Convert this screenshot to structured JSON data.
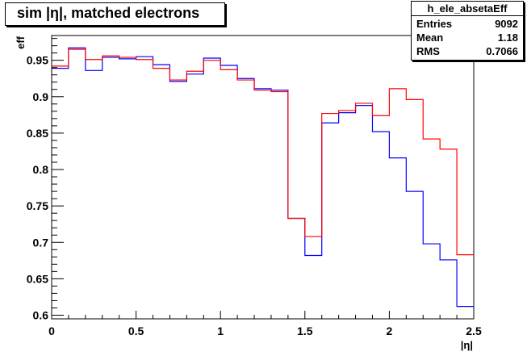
{
  "chart_data": {
    "type": "step",
    "title": "sim |η|, matched electrons",
    "xlabel": "|η|",
    "ylabel": "eff",
    "xlim": [
      0,
      2.5
    ],
    "ylim": [
      0.595,
      0.984
    ],
    "x_ticks": [
      0,
      0.5,
      1,
      1.5,
      2,
      2.5
    ],
    "x_tick_labels": [
      "0",
      "0.5",
      "1",
      "1.5",
      "2",
      "2.5"
    ],
    "y_ticks": [
      0.6,
      0.65,
      0.7,
      0.75,
      0.8,
      0.85,
      0.9,
      0.95
    ],
    "y_tick_labels": [
      "0.6",
      "0.65",
      "0.7",
      "0.75",
      "0.8",
      "0.85",
      "0.9",
      "0.95"
    ],
    "bin_edges": [
      0,
      0.1,
      0.2,
      0.3,
      0.4,
      0.5,
      0.6,
      0.7,
      0.8,
      0.9,
      1.0,
      1.1,
      1.2,
      1.3,
      1.4,
      1.5,
      1.6,
      1.7,
      1.8,
      1.9,
      2.0,
      2.1,
      2.2,
      2.3,
      2.4,
      2.5
    ],
    "series": [
      {
        "color": "#0000ff",
        "values": [
          0.939,
          0.967,
          0.936,
          0.954,
          0.952,
          0.955,
          0.944,
          0.921,
          0.931,
          0.953,
          0.943,
          0.925,
          0.911,
          0.909,
          0.733,
          0.682,
          0.864,
          0.878,
          0.888,
          0.852,
          0.816,
          0.77,
          0.698,
          0.676,
          0.612
        ]
      },
      {
        "color": "#ff0000",
        "values": [
          0.942,
          0.965,
          0.951,
          0.956,
          0.954,
          0.951,
          0.939,
          0.923,
          0.935,
          0.95,
          0.937,
          0.923,
          0.909,
          0.907,
          0.733,
          0.708,
          0.877,
          0.881,
          0.891,
          0.874,
          0.911,
          0.896,
          0.842,
          0.828,
          0.683
        ]
      }
    ]
  },
  "stats": {
    "name": "h_ele_absetaEff",
    "entries_label": "Entries",
    "entries_value": "9092",
    "mean_label": "Mean",
    "mean_value": "1.18",
    "rms_label": "RMS",
    "rms_value": "0.7066"
  }
}
